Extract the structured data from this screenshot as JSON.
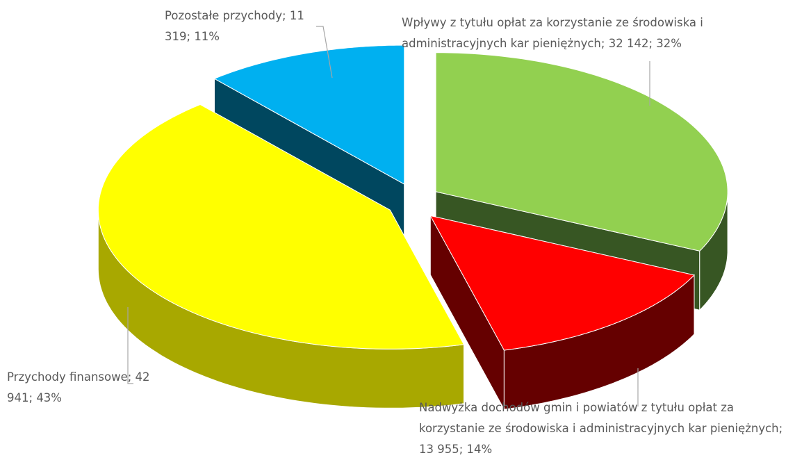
{
  "chart_data": {
    "type": "pie3d",
    "categories": [
      "Wpływy z tytułu opłat za korzystanie ze środowiska i administracyjnych kar pieniężnych",
      "Nadwyżka dochodów gmin i powiatów z tytułu opłat za korzystanie ze środowiska i administracyjnych kar pieniężnych",
      "Przychody finansowe",
      "Pozostałe przychody"
    ],
    "values": [
      32142,
      13955,
      42941,
      11319
    ],
    "value_labels": [
      "32 142",
      "13 955",
      "42 941",
      "11 319"
    ],
    "percent_labels": [
      "32%",
      "14%",
      "43%",
      "11%"
    ],
    "label_separator": "; ",
    "colors": [
      "#92d050",
      "#ff0000",
      "#ffff00",
      "#00b0f0"
    ],
    "side_colors": [
      "#375623",
      "#650000",
      "#a8a800",
      "#00475f"
    ]
  }
}
